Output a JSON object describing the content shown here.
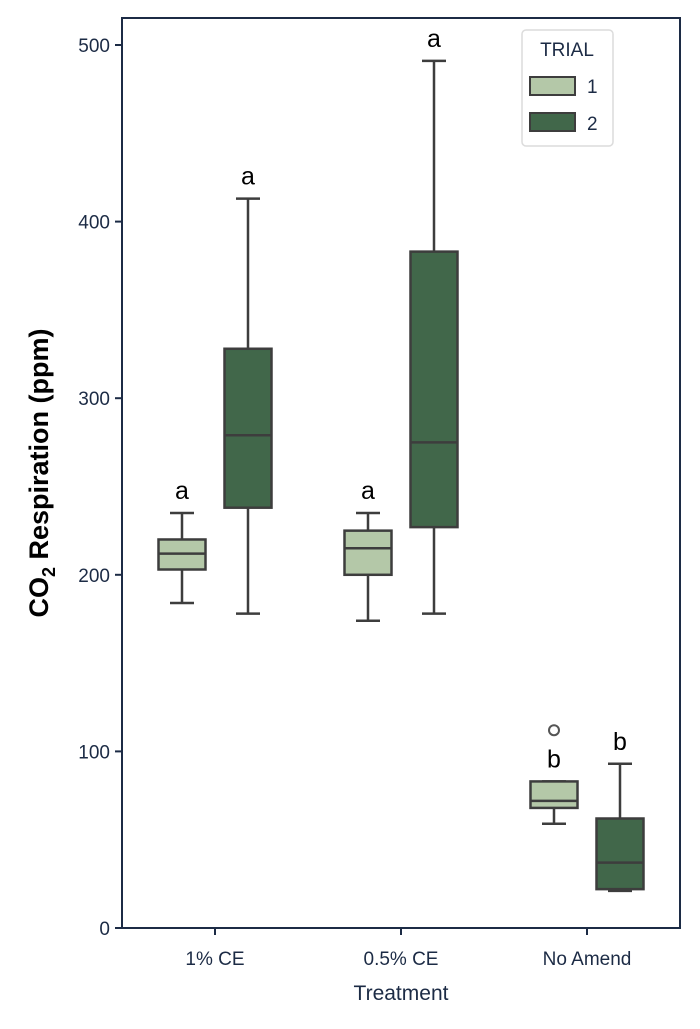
{
  "chart_data": {
    "type": "box",
    "title": "",
    "xlabel": "Treatment",
    "ylabel_main": "CO",
    "ylabel_sub": "2",
    "ylabel_rest": " Respiration (ppm)",
    "ylim": [
      0,
      500
    ],
    "yticks": [
      "0",
      "100",
      "200",
      "300",
      "400",
      "500"
    ],
    "ytick_values": [
      0,
      100,
      200,
      300,
      400,
      500
    ],
    "categories": [
      "1% CE",
      "0.5% CE",
      "No Amend"
    ],
    "grid": false,
    "legend": {
      "title": "TRIAL",
      "placement": "top-right",
      "labels": [
        "1",
        "2"
      ]
    },
    "series": [
      {
        "name": "1",
        "color": "#b4c8a8",
        "boxes": [
          {
            "whisker_low": 184,
            "q1": 203,
            "median": 212,
            "q3": 220,
            "whisker_high": 235,
            "outliers": [],
            "letter": "a"
          },
          {
            "whisker_low": 174,
            "q1": 200,
            "median": 215,
            "q3": 225,
            "whisker_high": 235,
            "outliers": [],
            "letter": "a"
          },
          {
            "whisker_low": 59,
            "q1": 68,
            "median": 72,
            "q3": 83,
            "whisker_high": 83,
            "outliers": [
              112
            ],
            "letter": "b"
          }
        ]
      },
      {
        "name": "2",
        "color": "#41674a",
        "boxes": [
          {
            "whisker_low": 178,
            "q1": 238,
            "median": 279,
            "q3": 328,
            "whisker_high": 413,
            "outliers": [],
            "letter": "a"
          },
          {
            "whisker_low": 178,
            "q1": 227,
            "median": 275,
            "q3": 383,
            "whisker_high": 491,
            "outliers": [],
            "letter": "a"
          },
          {
            "whisker_low": 21,
            "q1": 22,
            "median": 37,
            "q3": 62,
            "whisker_high": 93,
            "outliers": [],
            "letter": "b"
          }
        ]
      }
    ],
    "colors": {
      "axis": "#1c2b45",
      "box_edge": "#3d3d3d"
    }
  }
}
